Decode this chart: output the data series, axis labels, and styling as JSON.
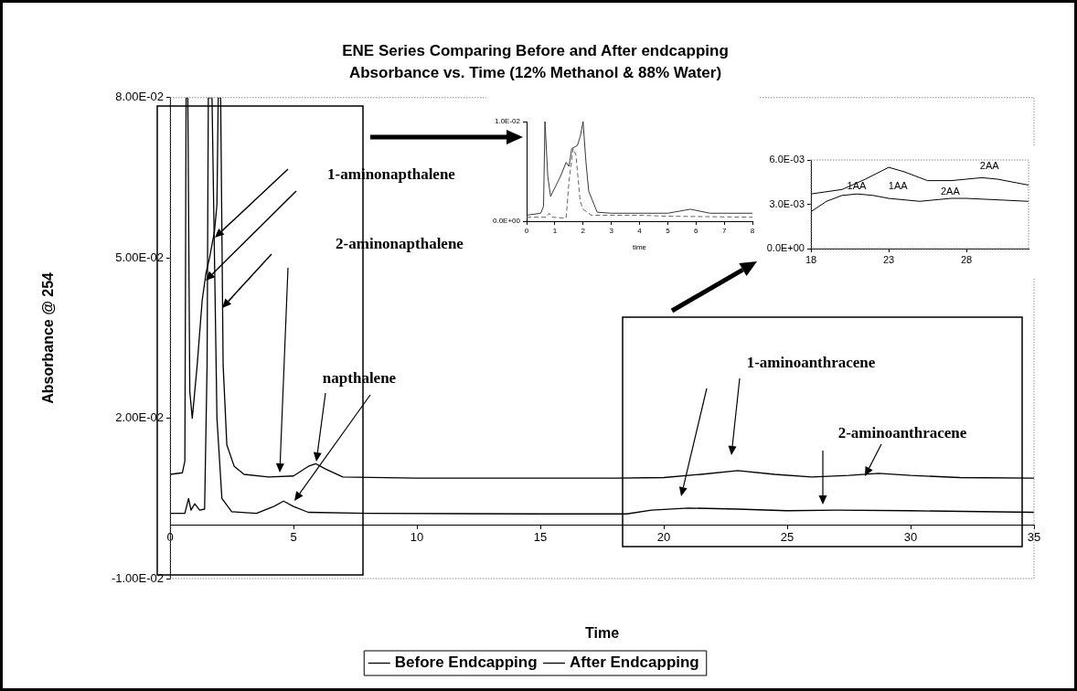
{
  "chart_data": [
    {
      "type": "line",
      "title": "ENE Series Comparing Before and After endcapping",
      "subtitle": "Absorbance vs. Time (12% Methanol & 88% Water)",
      "xlabel": "Time",
      "ylabel": "Absorbance @ 254",
      "xlim": [
        0,
        35
      ],
      "xticks": [
        0,
        5,
        10,
        15,
        20,
        25,
        30,
        35
      ],
      "ylim": [
        -0.01,
        0.08
      ],
      "yticks": [
        {
          "value": -0.01,
          "label": "-1.00E-02"
        },
        {
          "value": 0.02,
          "label": "2.00E-02"
        },
        {
          "value": 0.05,
          "label": "5.00E-02"
        },
        {
          "value": 0.08,
          "label": "8.00E-02"
        }
      ],
      "legend": "bottom",
      "marker": "none",
      "series": [
        {
          "name": "Before Endcapping",
          "color": "#000000",
          "x": [
            0,
            0.5,
            0.6,
            0.65,
            0.72,
            0.8,
            0.9,
            1.1,
            1.3,
            1.45,
            1.6,
            1.8,
            1.9,
            1.95,
            2.05,
            2.15,
            2.3,
            2.6,
            3,
            4,
            5,
            5.6,
            5.9,
            6.3,
            7,
            10,
            15,
            18,
            20,
            21.5,
            23,
            24.5,
            26,
            27.5,
            28.7,
            30,
            32,
            35
          ],
          "values": [
            0.0095,
            0.0098,
            0.012,
            0.08,
            0.08,
            0.025,
            0.02,
            0.03,
            0.042,
            0.047,
            0.05,
            0.055,
            0.06,
            0.08,
            0.08,
            0.03,
            0.015,
            0.011,
            0.0095,
            0.009,
            0.0092,
            0.011,
            0.0115,
            0.0105,
            0.009,
            0.0088,
            0.0088,
            0.0088,
            0.0089,
            0.0095,
            0.0102,
            0.0095,
            0.009,
            0.0093,
            0.0097,
            0.0093,
            0.0089,
            0.0088
          ]
        },
        {
          "name": "After Endcapping",
          "color": "#000000",
          "x": [
            0,
            0.6,
            0.75,
            0.85,
            1,
            1.2,
            1.4,
            1.5,
            1.55,
            1.7,
            1.8,
            1.9,
            2.1,
            2.5,
            3.5,
            4.2,
            4.6,
            5,
            5.6,
            8,
            15,
            18.5,
            19.5,
            21,
            23,
            25,
            27,
            30,
            35
          ],
          "values": [
            0.0022,
            0.0022,
            0.005,
            0.0028,
            0.004,
            0.0028,
            0.003,
            0.03,
            0.08,
            0.08,
            0.05,
            0.02,
            0.005,
            0.0025,
            0.0022,
            0.0035,
            0.0045,
            0.0035,
            0.0024,
            0.0022,
            0.0021,
            0.0021,
            0.0028,
            0.0032,
            0.003,
            0.0027,
            0.0028,
            0.0027,
            0.0024
          ]
        }
      ],
      "annotations": [
        "1-aminonapthalene",
        "2-aminonapthalene",
        "napthalene",
        "1-aminoanthracene",
        "2-aminoanthracene"
      ]
    },
    {
      "type": "line",
      "xlabel": "time",
      "xlim": [
        0,
        8
      ],
      "xticks": [
        0,
        1,
        2,
        3,
        4,
        5,
        6,
        7,
        8
      ],
      "ylim": [
        0,
        0.01
      ],
      "yticks": [
        {
          "value": 0,
          "label": "0.0E+00"
        },
        {
          "value": 0.01,
          "label": "1.0E-02"
        }
      ],
      "marker": "none",
      "series": [
        {
          "color": "#222222",
          "line_style": "solid",
          "x": [
            0,
            0.5,
            0.6,
            0.65,
            0.75,
            0.85,
            1.2,
            1.4,
            1.5,
            1.6,
            1.8,
            1.9,
            2,
            2.1,
            2.2,
            2.5,
            3,
            5,
            5.8,
            6.5,
            8
          ],
          "values": [
            0.0006,
            0.0008,
            0.0015,
            0.01,
            0.0045,
            0.0025,
            0.0045,
            0.0059,
            0.0055,
            0.0073,
            0.0076,
            0.0085,
            0.01,
            0.006,
            0.003,
            0.0009,
            0.0008,
            0.0008,
            0.0012,
            0.0008,
            0.0008
          ]
        },
        {
          "color": "#555555",
          "line_style": "dashed",
          "x": [
            0,
            0.7,
            0.8,
            0.9,
            1.4,
            1.5,
            1.65,
            1.75,
            1.8,
            1.9,
            2,
            2.3,
            4,
            5,
            8
          ],
          "values": [
            0.0004,
            0.0004,
            0.0008,
            0.0004,
            0.0003,
            0.004,
            0.0073,
            0.0066,
            0.005,
            0.002,
            0.0012,
            0.0006,
            0.0006,
            0.0005,
            0.0004
          ]
        }
      ]
    },
    {
      "type": "line",
      "xlim": [
        18,
        32
      ],
      "xticks": [
        18,
        23,
        28
      ],
      "ylim": [
        0,
        0.006
      ],
      "yticks": [
        {
          "value": 0,
          "label": "0.0E+00"
        },
        {
          "value": 0.003,
          "label": "3.0E-03"
        },
        {
          "value": 0.006,
          "label": "6.0E-03"
        }
      ],
      "marker": "none",
      "series": [
        {
          "color": "#000000",
          "x": [
            18,
            20,
            21.5,
            23,
            24,
            25.5,
            27,
            28,
            29,
            30,
            32
          ],
          "values": [
            0.0037,
            0.004,
            0.0047,
            0.0055,
            0.0052,
            0.0046,
            0.0046,
            0.0047,
            0.0048,
            0.0047,
            0.0043
          ]
        },
        {
          "color": "#000000",
          "x": [
            18,
            19,
            20,
            21,
            22,
            23,
            25,
            27,
            28,
            30,
            32
          ],
          "values": [
            0.0025,
            0.0032,
            0.0036,
            0.0037,
            0.0036,
            0.0034,
            0.0032,
            0.0034,
            0.0034,
            0.0033,
            0.0032
          ]
        }
      ],
      "annotations": [
        "1AA",
        "2AA",
        "1AA",
        "2AA"
      ]
    }
  ]
}
